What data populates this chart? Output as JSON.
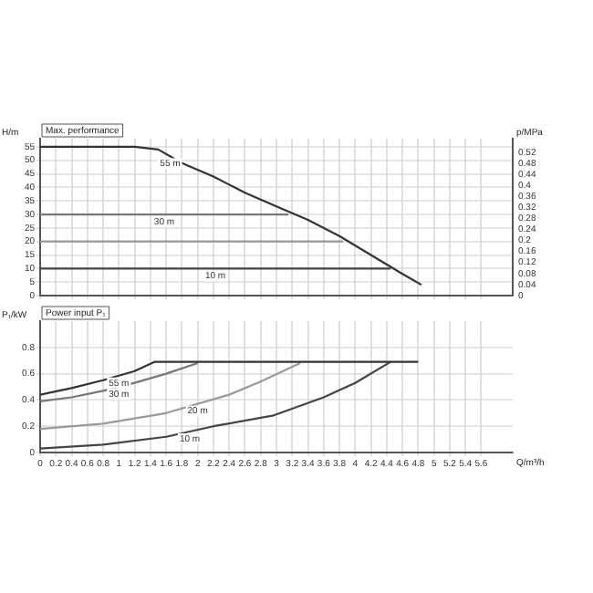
{
  "chart_data": [
    {
      "type": "line",
      "title": "Max. performance",
      "ylabel": "H/m",
      "y2label": "p/MPa",
      "xlim": [
        0,
        6
      ],
      "xticks": [
        0,
        0.2,
        0.4,
        0.6,
        0.8,
        1,
        1.2,
        1.4,
        1.6,
        1.8,
        2,
        2.2,
        2.4,
        2.6,
        2.8,
        3,
        3.2,
        3.4,
        3.6,
        3.8,
        4,
        4.2,
        4.4,
        4.6,
        4.8,
        5,
        5.2,
        5.4,
        5.6
      ],
      "ylim": [
        0,
        58
      ],
      "yticks": [
        0,
        5,
        10,
        15,
        20,
        25,
        30,
        35,
        40,
        45,
        50,
        55
      ],
      "y2lim": [
        0,
        0.569
      ],
      "y2ticks": [
        0,
        0.04,
        0.08,
        0.12,
        0.16,
        0.2,
        0.24,
        0.28,
        0.32,
        0.36,
        0.4,
        0.44,
        0.48,
        0.52
      ],
      "grid": true,
      "legend": false,
      "tick_labels": "y",
      "marker": "none",
      "series": [
        {
          "name": "55 m",
          "color": "#333333",
          "x": [
            0,
            0.4,
            0.8,
            1.2,
            1.5,
            1.8,
            2.2,
            2.6,
            3.0,
            3.4,
            3.8,
            4.2,
            4.6,
            4.84
          ],
          "values": [
            55,
            55,
            55,
            55,
            54,
            49,
            44,
            38,
            33,
            28,
            22,
            15,
            8,
            4
          ]
        },
        {
          "name": "30 m",
          "color": "#777777",
          "x": [
            0,
            3.15
          ],
          "values": [
            30,
            30
          ]
        },
        {
          "color": "#999999",
          "x": [
            0,
            3.85
          ],
          "values": [
            20,
            20
          ]
        },
        {
          "name": "10 m",
          "color": "#444444",
          "x": [
            0,
            4.45
          ],
          "values": [
            10,
            10
          ]
        }
      ]
    },
    {
      "type": "line",
      "title": "Power input P₁",
      "ylabel": "P₁/kW",
      "xlabel": "Q/m³/h",
      "xlim": [
        0,
        6
      ],
      "xticks": [
        0,
        0.2,
        0.4,
        0.6,
        0.8,
        1,
        1.2,
        1.4,
        1.6,
        1.8,
        2,
        2.2,
        2.4,
        2.6,
        2.8,
        3,
        3.2,
        3.4,
        3.6,
        3.8,
        4,
        4.2,
        4.4,
        4.6,
        4.8,
        5,
        5.2,
        5.4,
        5.6
      ],
      "ylim": [
        0,
        1
      ],
      "yticks": [
        0,
        0.2,
        0.4,
        0.6,
        0.8
      ],
      "grid": true,
      "legend": false,
      "marker": "none",
      "series": [
        {
          "name": "55 m",
          "color": "#333333",
          "x": [
            0,
            0.4,
            0.8,
            1.2,
            1.45,
            4.8
          ],
          "values": [
            0.44,
            0.49,
            0.55,
            0.62,
            0.69,
            0.69
          ]
        },
        {
          "name": "30 m",
          "color": "#777777",
          "x": [
            0,
            0.4,
            0.8,
            1.2,
            1.6,
            2.0
          ],
          "values": [
            0.39,
            0.42,
            0.47,
            0.53,
            0.6,
            0.68
          ]
        },
        {
          "name": "20 m",
          "color": "#999999",
          "x": [
            0,
            0.8,
            1.6,
            2.4,
            2.8,
            3.3
          ],
          "values": [
            0.18,
            0.22,
            0.3,
            0.44,
            0.54,
            0.68
          ]
        },
        {
          "name": "10 m",
          "color": "#444444",
          "x": [
            0,
            0.8,
            1.6,
            2.2,
            2.95,
            3.6,
            4.0,
            4.45
          ],
          "values": [
            0.03,
            0.06,
            0.12,
            0.2,
            0.28,
            0.42,
            0.53,
            0.69
          ]
        }
      ]
    }
  ]
}
